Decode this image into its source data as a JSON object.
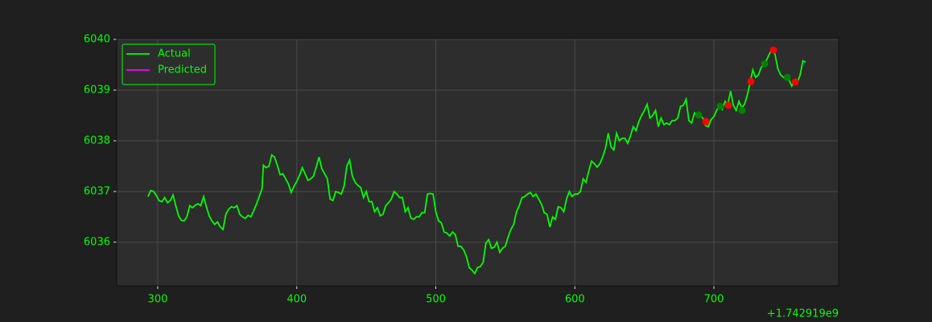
{
  "chart_data": {
    "type": "line",
    "x_offset_label": "+1.742919e9",
    "xlim": [
      270.5,
      789.7
    ],
    "ylim": [
      6035.14,
      6040.016
    ],
    "xticks": [
      300,
      400,
      500,
      600,
      700
    ],
    "yticks": [
      6036,
      6037,
      6038,
      6039,
      6040
    ],
    "grid": true,
    "legend": "upper left",
    "series": [
      {
        "name": "Actual",
        "color": "#00ff00",
        "kind": "line",
        "x": [
          293,
          295,
          297,
          299,
          301,
          303,
          305,
          307,
          309,
          311,
          313,
          315,
          317,
          319,
          321,
          323,
          325,
          327,
          329,
          331,
          333,
          335,
          337,
          339,
          341,
          343,
          345,
          347,
          349,
          351,
          353,
          355,
          357,
          359,
          361,
          363,
          365,
          367,
          369,
          371,
          373,
          375,
          376,
          378,
          380,
          382,
          384,
          386,
          388,
          390,
          392,
          394,
          396,
          398,
          400,
          402,
          404,
          406,
          408,
          410,
          412,
          414,
          416,
          418,
          420,
          422,
          424,
          426,
          428,
          430,
          432,
          434,
          436,
          438,
          440,
          442,
          444,
          446,
          448,
          450,
          452,
          454,
          456,
          458,
          460,
          462,
          464,
          466,
          468,
          470,
          472,
          474,
          476,
          478,
          480,
          482,
          484,
          486,
          488,
          490,
          492,
          494,
          496,
          498,
          500,
          502,
          504,
          506,
          508,
          510,
          512,
          514,
          516,
          518,
          520,
          522,
          524,
          526,
          528,
          530,
          532,
          534,
          536,
          538,
          540,
          542,
          544,
          546,
          548,
          550,
          552,
          554,
          556,
          558,
          560,
          562,
          564,
          566,
          568,
          570,
          572,
          574,
          576,
          578,
          580,
          582,
          584,
          586,
          588,
          590,
          592,
          594,
          596,
          598,
          600,
          602,
          604,
          606,
          608,
          610,
          612,
          614,
          616,
          618,
          620,
          622,
          624,
          626,
          628,
          630,
          632,
          634,
          636,
          638,
          640,
          642,
          644,
          646,
          648,
          650,
          652,
          654,
          656,
          658,
          660,
          662,
          664,
          666,
          668,
          670,
          672,
          674,
          676,
          678,
          680,
          682,
          684,
          686,
          688,
          690,
          692,
          694,
          696,
          698,
          700,
          702,
          704,
          706,
          708,
          710,
          712,
          714,
          716,
          718,
          720,
          722,
          724,
          726,
          728,
          730,
          732,
          734,
          736,
          738,
          740,
          742,
          744,
          746,
          748,
          750,
          752,
          754,
          756,
          758,
          760,
          762,
          764,
          766
        ],
        "values": [
          6036.9,
          6037.02,
          6037.0,
          6036.92,
          6036.82,
          6036.8,
          6036.88,
          6036.78,
          6036.82,
          6036.93,
          6036.72,
          6036.52,
          6036.43,
          6036.42,
          6036.5,
          6036.72,
          6036.68,
          6036.73,
          6036.76,
          6036.72,
          6036.9,
          6036.7,
          6036.52,
          6036.42,
          6036.35,
          6036.4,
          6036.3,
          6036.25,
          6036.55,
          6036.65,
          6036.7,
          6036.68,
          6036.72,
          6036.55,
          6036.5,
          6036.47,
          6036.53,
          6036.5,
          6036.62,
          6036.75,
          6036.9,
          6037.05,
          6037.52,
          6037.47,
          6037.5,
          6037.72,
          6037.68,
          6037.52,
          6037.33,
          6037.35,
          6037.25,
          6037.15,
          6036.98,
          6037.1,
          6037.2,
          6037.32,
          6037.47,
          6037.35,
          6037.22,
          6037.25,
          6037.3,
          6037.48,
          6037.68,
          6037.45,
          6037.35,
          6037.25,
          6036.85,
          6036.82,
          6037.0,
          6036.98,
          6036.95,
          6037.1,
          6037.5,
          6037.62,
          6037.3,
          6037.18,
          6037.12,
          6037.08,
          6036.88,
          6037.0,
          6036.8,
          6036.8,
          6036.6,
          6036.68,
          6036.52,
          6036.55,
          6036.72,
          6036.78,
          6036.85,
          6037.0,
          6036.95,
          6036.88,
          6036.88,
          6036.6,
          6036.68,
          6036.48,
          6036.45,
          6036.5,
          6036.5,
          6036.58,
          6036.58,
          6036.95,
          6036.96,
          6036.95,
          6036.6,
          6036.42,
          6036.38,
          6036.2,
          6036.18,
          6036.12,
          6036.2,
          6036.15,
          6035.92,
          6035.92,
          6035.85,
          6035.72,
          6035.5,
          6035.45,
          6035.38,
          6035.5,
          6035.52,
          6035.6,
          6035.98,
          6036.05,
          6035.88,
          6035.9,
          6036.0,
          6035.8,
          6035.88,
          6035.92,
          6036.1,
          6036.25,
          6036.35,
          6036.6,
          6036.72,
          6036.88,
          6036.9,
          6036.95,
          6036.98,
          6036.9,
          6036.95,
          6036.85,
          6036.75,
          6036.58,
          6036.55,
          6036.3,
          6036.5,
          6036.45,
          6036.7,
          6036.68,
          6036.6,
          6036.85,
          6037.0,
          6036.9,
          6036.95,
          6036.95,
          6037.0,
          6037.25,
          6037.18,
          6037.4,
          6037.6,
          6037.55,
          6037.48,
          6037.55,
          6037.68,
          6037.85,
          6038.15,
          6037.88,
          6037.82,
          6038.15,
          6038.0,
          6038.05,
          6038.05,
          6037.95,
          6038.1,
          6038.28,
          6038.2,
          6038.38,
          6038.5,
          6038.6,
          6038.72,
          6038.45,
          6038.5,
          6038.6,
          6038.28,
          6038.45,
          6038.32,
          6038.35,
          6038.32,
          6038.4,
          6038.4,
          6038.45,
          6038.68,
          6038.7,
          6038.82,
          6038.4,
          6038.35,
          6038.55,
          6038.48,
          6038.5,
          6038.45,
          6038.3,
          6038.28,
          6038.42,
          6038.48,
          6038.6,
          6038.72,
          6038.62,
          6038.78,
          6038.72,
          6038.98,
          6038.7,
          6038.6,
          6038.78,
          6038.65,
          6038.72,
          6038.9,
          6039.15,
          6039.4,
          6039.25,
          6039.3,
          6039.45,
          6039.5,
          6039.6,
          6039.72,
          6039.82,
          6039.7,
          6039.42,
          6039.3,
          6039.25,
          6039.3,
          6039.2,
          6039.08,
          6039.2,
          6039.15,
          6039.3,
          6039.58,
          6039.55
        ]
      },
      {
        "name": "Predicted",
        "color": "#ff00ff",
        "kind": "line",
        "x": [],
        "values": []
      },
      {
        "color": "#008000",
        "kind": "scatter",
        "x": [
          689,
          704.6,
          720.3,
          736.5,
          752.7
        ],
        "values": [
          6038.51,
          6038.68,
          6038.6,
          6039.52,
          6039.25
        ]
      },
      {
        "color": "#ff0000",
        "kind": "scatter",
        "x": [
          694.2,
          710.4,
          726.6,
          742.8,
          758.5
        ],
        "values": [
          6038.38,
          6038.7,
          6039.17,
          6039.79,
          6039.16
        ]
      }
    ]
  }
}
